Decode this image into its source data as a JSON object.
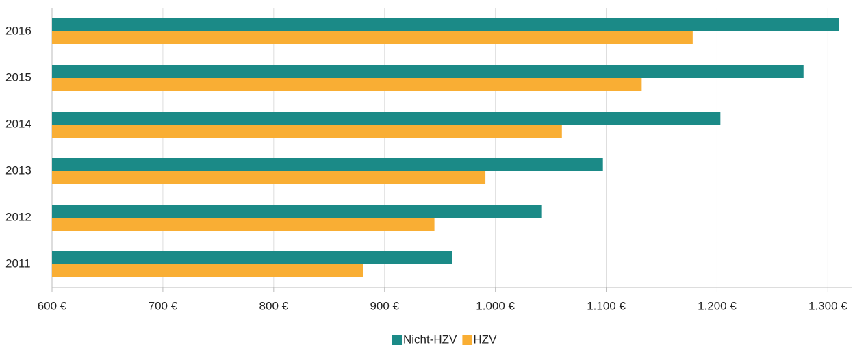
{
  "chart_data": {
    "type": "bar",
    "orientation": "horizontal",
    "categories": [
      "2011",
      "2012",
      "2013",
      "2014",
      "2015",
      "2016"
    ],
    "series": [
      {
        "name": "Nicht-HZV",
        "color": "#1b8a87",
        "values": [
          961,
          1042,
          1097,
          1203,
          1278,
          1310
        ]
      },
      {
        "name": "HZV",
        "color": "#f9ae34",
        "values": [
          881,
          945,
          991,
          1060,
          1132,
          1178
        ]
      }
    ],
    "xlim": [
      600,
      1322
    ],
    "xticks": [
      {
        "value": 600,
        "label": "600 €"
      },
      {
        "value": 700,
        "label": "700 €"
      },
      {
        "value": 800,
        "label": "800 €"
      },
      {
        "value": 900,
        "label": "900 €"
      },
      {
        "value": 1000,
        "label": "1.000 €"
      },
      {
        "value": 1100,
        "label": "1.100 €"
      },
      {
        "value": 1200,
        "label": "1.200 €"
      },
      {
        "value": 1300,
        "label": "1.300 €"
      }
    ],
    "grid": true,
    "legend": "bottom"
  }
}
